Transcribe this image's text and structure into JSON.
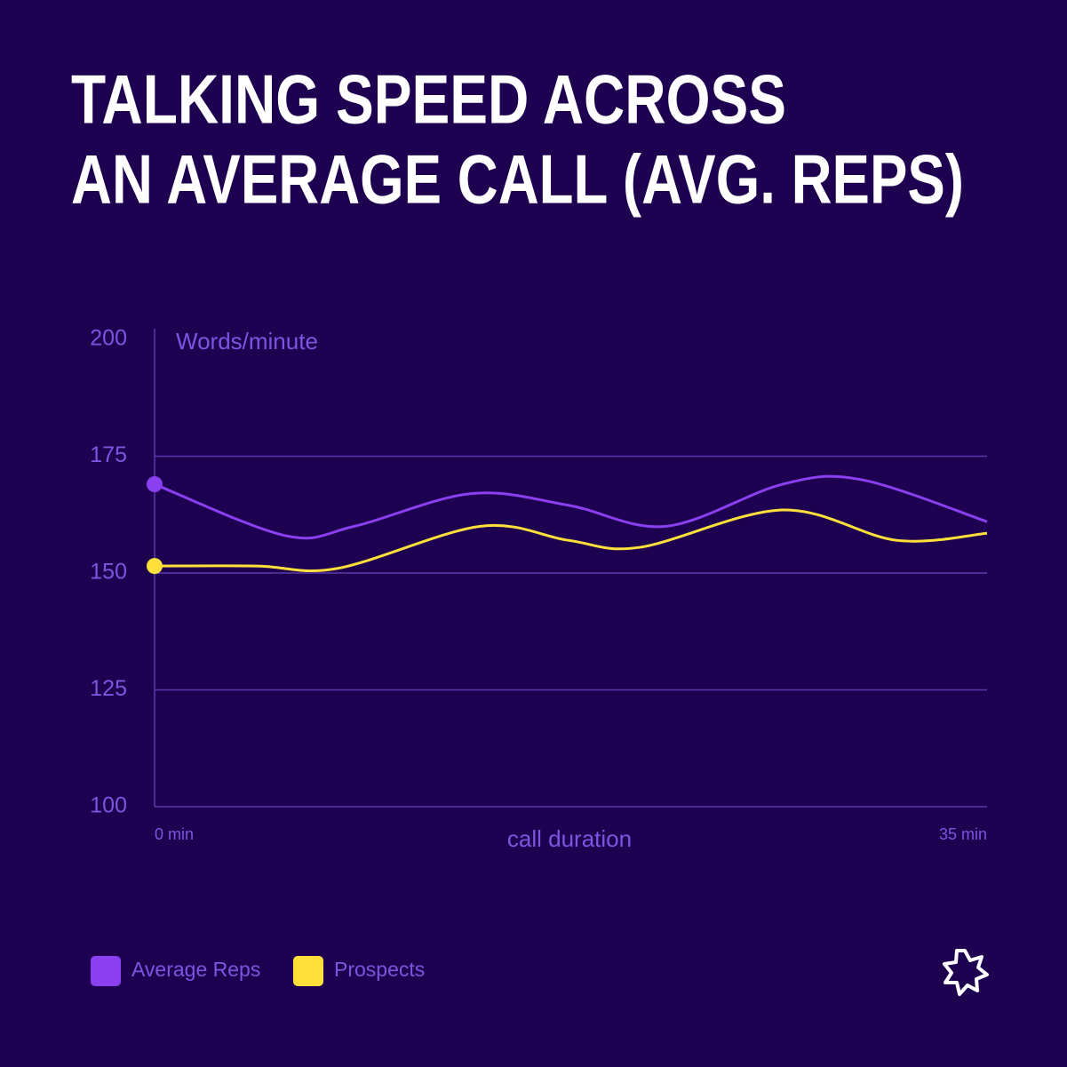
{
  "chart_data": {
    "type": "line",
    "title": [
      "TALKING SPEED ACROSS",
      "AN AVERAGE CALL (AVG. REPS)"
    ],
    "y_label": "Words/minute",
    "x_label": "call duration",
    "xlim": [
      0,
      35
    ],
    "xticks": [
      {
        "value": 0,
        "label": "0 min"
      },
      {
        "value": 35,
        "label": "35 min"
      }
    ],
    "ylim": [
      100,
      200
    ],
    "yticks": [
      100,
      125,
      150,
      175,
      200
    ],
    "grid": true,
    "legend": "bottom-left",
    "series": [
      {
        "name": "Average Reps",
        "color": "#8a3ff0",
        "x": [
          0,
          5.5,
          8.4,
          13.3,
          17.4,
          21.5,
          26.4,
          29.7,
          35
        ],
        "values": [
          169,
          158,
          160,
          167,
          164.5,
          160,
          169,
          170,
          161
        ]
      },
      {
        "name": "Prospects",
        "color": "#ffe03a",
        "x": [
          0,
          4.3,
          7.7,
          13.7,
          17.4,
          20.4,
          26.4,
          31.2,
          35
        ],
        "values": [
          151.5,
          151.5,
          151,
          160,
          157,
          155.5,
          163.5,
          157,
          158.5
        ]
      }
    ]
  }
}
